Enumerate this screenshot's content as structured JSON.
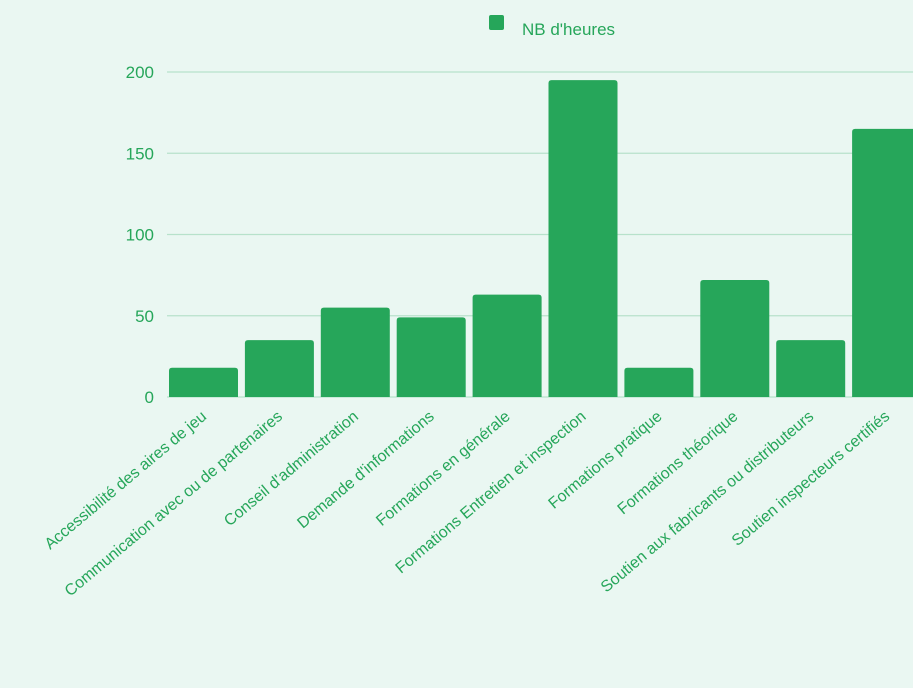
{
  "colors": {
    "background": "#eaf7f2",
    "bar": "#26a65a",
    "text": "#26a65a",
    "grid": "#b7e2cb"
  },
  "chart_data": {
    "type": "bar",
    "title": "",
    "xlabel": "",
    "ylabel": "",
    "legend_position": "top-center",
    "grid": true,
    "ylim": [
      0,
      200
    ],
    "yticks": [
      0,
      50,
      100,
      150,
      200
    ],
    "categories": [
      "Accessibilité des aires de jeu",
      "Communication avec ou de partenaires",
      "Conseil d'administration",
      "Demande d'informations",
      "Formations en générale",
      "Formations Entretien et inspection",
      "Formations pratique",
      "Formations théorique",
      "Soutien aux fabricants ou distributeurs",
      "Soutien inspecteurs certifiés"
    ],
    "series": [
      {
        "name": "NB d'heures",
        "values": [
          18,
          35,
          55,
          49,
          63,
          195,
          18,
          72,
          35,
          165
        ]
      }
    ]
  }
}
